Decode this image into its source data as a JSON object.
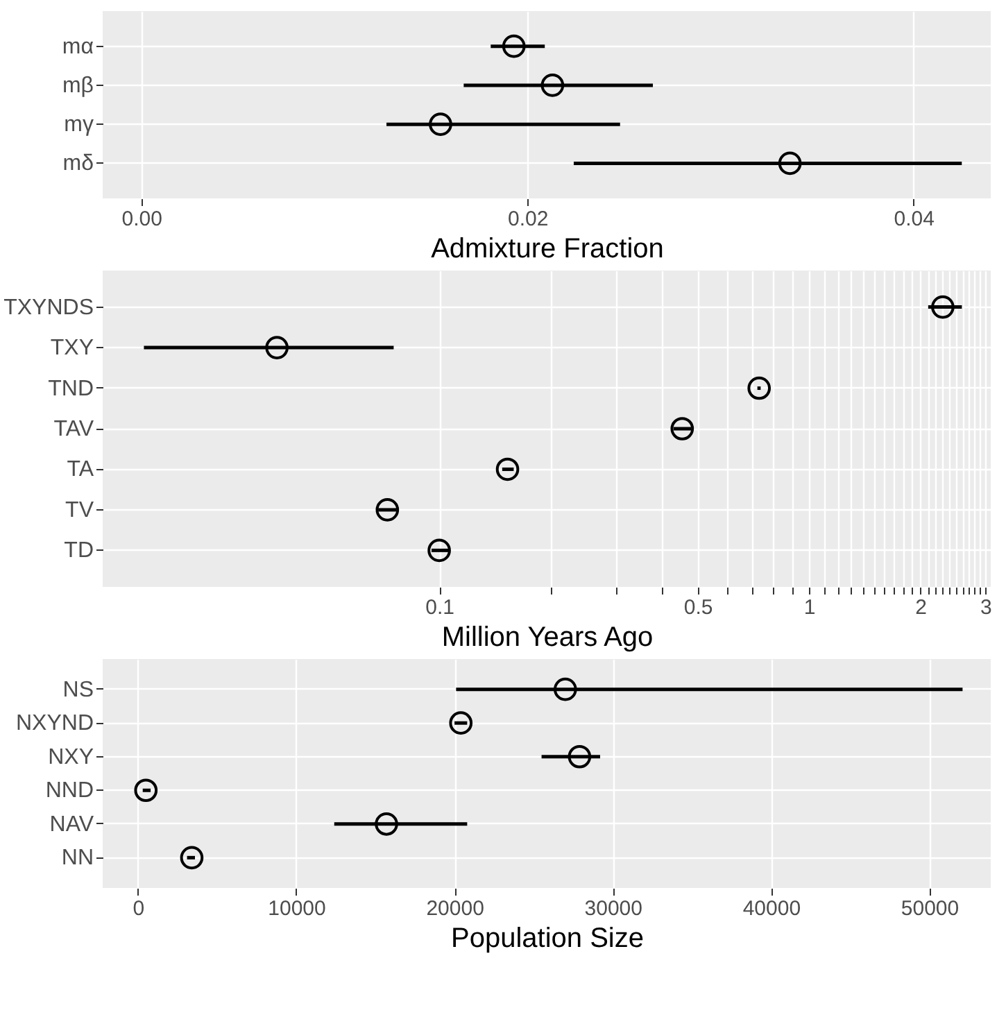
{
  "chart_data": [
    {
      "type": "scatter",
      "orientation": "horizontal",
      "xlabel": "Admixture Fraction",
      "categories": [
        "mα",
        "mβ",
        "mγ",
        "mδ"
      ],
      "series": [
        {
          "color": "#000000",
          "values": [
            0.0193,
            0.0213,
            0.0155,
            0.0336
          ],
          "errors": [
            [
              0.0181,
              0.0209
            ],
            [
              0.0167,
              0.0265
            ],
            [
              0.0127,
              0.0248
            ],
            [
              0.0224,
              0.0425
            ]
          ]
        }
      ],
      "xlim": [
        -0.002,
        0.044
      ],
      "xticks": [
        {
          "value": 0,
          "label": "0.00"
        },
        {
          "value": 0.02,
          "label": "0.02"
        },
        {
          "value": 0.04,
          "label": "0.04"
        }
      ],
      "grid": true,
      "marker": "circle"
    },
    {
      "type": "scatter",
      "orientation": "horizontal",
      "xlabel": "Million Years Ago",
      "categories": [
        "TXYNDS",
        "TXY",
        "TND",
        "TAV",
        "TA",
        "TV",
        "TD"
      ],
      "series": [
        {
          "color": "#000000",
          "values": [
            2.3,
            0.0364,
            0.733,
            0.454,
            0.153,
            0.0724,
            0.1
          ],
          "errors": [
            [
              2.1,
              2.59
            ],
            [
              0.0159,
              0.0753
            ],
            [
              0.725,
              0.74
            ],
            [
              0.43,
              0.48
            ],
            [
              0.148,
              0.159
            ],
            [
              0.0684,
              0.0766
            ],
            [
              0.0953,
              0.106
            ]
          ]
        }
      ],
      "xlim": [
        0.0123,
        3.1
      ],
      "log": "x",
      "xticks": [
        0.1,
        {
          "value": 0.2,
          "label": null
        },
        {
          "value": 0.3,
          "label": null
        },
        {
          "value": 0.4,
          "label": null
        },
        0.5,
        {
          "value": 0.6,
          "label": null
        },
        {
          "value": 0.7,
          "label": null
        },
        {
          "value": 0.8,
          "label": null
        },
        {
          "value": 0.9,
          "label": null
        },
        1,
        {
          "value": 1.1,
          "label": null
        },
        {
          "value": 1.2,
          "label": null
        },
        {
          "value": 1.3,
          "label": null
        },
        {
          "value": 1.4,
          "label": null
        },
        {
          "value": 1.5,
          "label": null
        },
        {
          "value": 1.6,
          "label": null
        },
        {
          "value": 1.7,
          "label": null
        },
        {
          "value": 1.8,
          "label": null
        },
        {
          "value": 1.9,
          "label": null
        },
        2,
        {
          "value": 2.1,
          "label": null
        },
        {
          "value": 2.2,
          "label": null
        },
        {
          "value": 2.3,
          "label": null
        },
        {
          "value": 2.4,
          "label": null
        },
        {
          "value": 2.5,
          "label": null
        },
        {
          "value": 2.6,
          "label": null
        },
        {
          "value": 2.7,
          "label": null
        },
        {
          "value": 2.8,
          "label": null
        },
        {
          "value": 2.9,
          "label": null
        },
        3
      ],
      "grid": true,
      "marker": "circle"
    },
    {
      "type": "scatter",
      "orientation": "horizontal",
      "xlabel": "Population Size",
      "categories": [
        "NS",
        "NXYND",
        "NXY",
        "NND",
        "NAV",
        "NN"
      ],
      "series": [
        {
          "color": "#000000",
          "values": [
            27000,
            20400,
            27900,
            500,
            15700,
            3400
          ],
          "errors": [
            [
              20100,
              52100
            ],
            [
              20000,
              20800
            ],
            [
              25500,
              29200
            ],
            [
              300,
              800
            ],
            [
              12400,
              20800
            ],
            [
              3100,
              3600
            ]
          ]
        }
      ],
      "xlim": [
        -2230,
        53880
      ],
      "xticks": [
        0,
        10000,
        20000,
        30000,
        40000,
        50000
      ],
      "grid": true,
      "marker": "circle"
    }
  ]
}
